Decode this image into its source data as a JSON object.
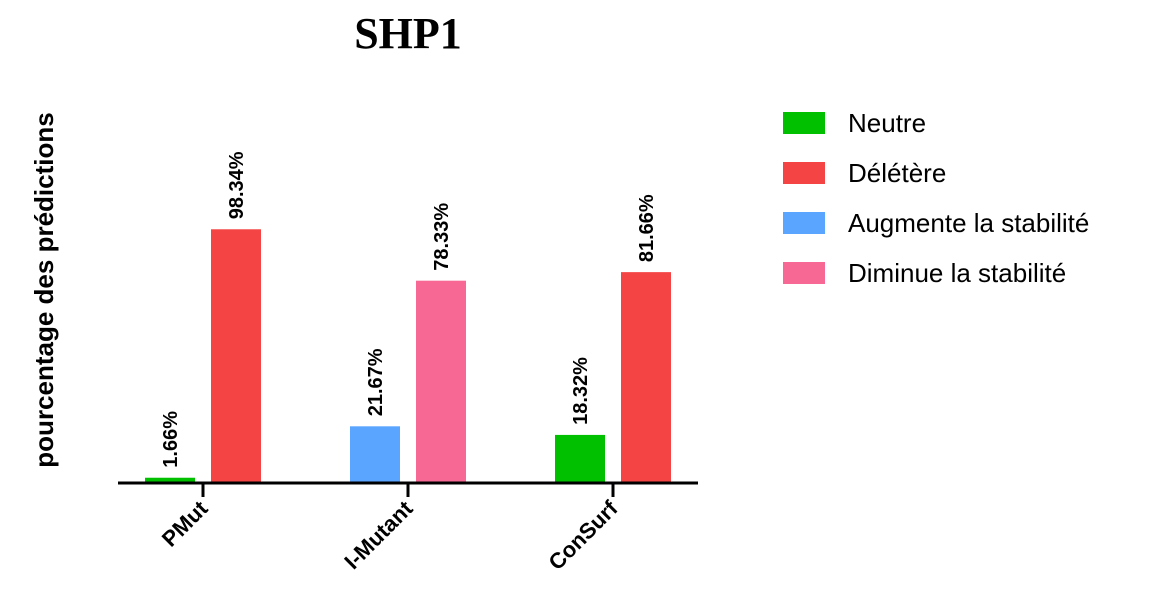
{
  "chart_data": {
    "type": "bar",
    "title": "SHP1",
    "ylabel": "pourcentage des prédictions",
    "xlabel": "",
    "ylim": [
      0,
      100
    ],
    "grid": false,
    "legend_position": "right",
    "categories": [
      "PMut",
      "I-Mutant",
      "ConSurf"
    ],
    "legend": [
      {
        "name": "Neutre",
        "color": "#00c000"
      },
      {
        "name": "Délétère",
        "color": "#f44444"
      },
      {
        "name": "Augmente la stabilité",
        "color": "#5aa5ff"
      },
      {
        "name": "Diminue la stabilité",
        "color": "#f86895"
      }
    ],
    "bars": [
      {
        "category": "PMut",
        "series": "Neutre",
        "value": 1.66,
        "label": "1.66%",
        "color": "#00c000"
      },
      {
        "category": "PMut",
        "series": "Délétère",
        "value": 98.34,
        "label": "98.34%",
        "color": "#f44444"
      },
      {
        "category": "I-Mutant",
        "series": "Augmente la stabilité",
        "value": 21.67,
        "label": "21.67%",
        "color": "#5aa5ff"
      },
      {
        "category": "I-Mutant",
        "series": "Diminue la stabilité",
        "value": 78.33,
        "label": "78.33%",
        "color": "#f86895"
      },
      {
        "category": "ConSurf",
        "series": "Neutre",
        "value": 18.32,
        "label": "18.32%",
        "color": "#00c000"
      },
      {
        "category": "ConSurf",
        "series": "Délétère",
        "value": 81.66,
        "label": "81.66%",
        "color": "#f44444"
      }
    ]
  }
}
